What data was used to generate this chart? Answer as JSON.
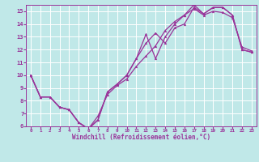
{
  "xlabel": "Windchill (Refroidissement éolien,°C)",
  "background_color": "#c0e8e8",
  "grid_color": "#ffffff",
  "line_color": "#993399",
  "xlim": [
    -0.5,
    23.5
  ],
  "ylim": [
    6,
    15.5
  ],
  "xticks": [
    0,
    1,
    2,
    3,
    4,
    5,
    6,
    7,
    8,
    9,
    10,
    11,
    12,
    13,
    14,
    15,
    16,
    17,
    18,
    19,
    20,
    21,
    22,
    23
  ],
  "yticks": [
    6,
    7,
    8,
    9,
    10,
    11,
    12,
    13,
    14,
    15
  ],
  "line1_x": [
    0,
    1,
    2,
    3,
    4,
    5,
    6,
    7,
    8,
    9,
    10,
    11,
    12,
    13,
    14,
    15,
    16,
    17,
    18,
    19,
    20,
    21,
    22,
    23
  ],
  "line1_y": [
    10.0,
    8.3,
    8.3,
    7.5,
    7.3,
    6.3,
    5.8,
    6.5,
    8.7,
    9.3,
    10.0,
    11.3,
    12.5,
    13.3,
    12.5,
    13.7,
    14.0,
    15.3,
    14.8,
    15.3,
    15.3,
    14.7,
    12.0,
    11.8
  ],
  "line2_x": [
    0,
    1,
    2,
    3,
    4,
    5,
    6,
    7,
    8,
    9,
    10,
    11,
    12,
    13,
    14,
    15,
    16,
    17,
    18,
    19,
    20,
    21,
    22,
    23
  ],
  "line2_y": [
    10.0,
    8.3,
    8.3,
    7.5,
    7.3,
    6.3,
    5.8,
    6.5,
    8.7,
    9.3,
    10.0,
    11.3,
    13.2,
    11.3,
    13.0,
    14.0,
    14.7,
    15.5,
    14.8,
    15.3,
    15.3,
    14.7,
    12.0,
    11.8
  ],
  "line3_x": [
    0,
    1,
    2,
    3,
    4,
    5,
    6,
    7,
    8,
    9,
    10,
    11,
    12,
    13,
    14,
    15,
    16,
    17,
    18,
    19,
    20,
    21,
    22,
    23
  ],
  "line3_y": [
    10.0,
    8.3,
    8.3,
    7.5,
    7.3,
    6.3,
    5.8,
    6.8,
    8.5,
    9.2,
    9.7,
    10.7,
    11.5,
    12.3,
    13.5,
    14.2,
    14.7,
    15.2,
    14.7,
    15.0,
    14.9,
    14.5,
    12.2,
    11.9
  ]
}
